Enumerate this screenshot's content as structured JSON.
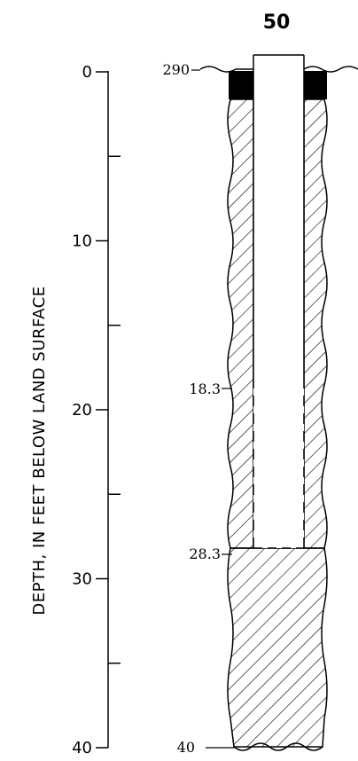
{
  "well": {
    "id": "50"
  },
  "axis": {
    "title": "DEPTH, IN FEET BELOW LAND SURFACE",
    "min": 0,
    "max": 40,
    "major_ticks": [
      0,
      10,
      20,
      30,
      40
    ],
    "minor_ticks": [
      5,
      15,
      25,
      35
    ],
    "tick_labels": [
      "0",
      "10",
      "20",
      "30",
      "40"
    ]
  },
  "well_log": {
    "land_surface_label": "290",
    "screen_top_label": "18.3",
    "screen_bottom_label": "28.3",
    "bottom_label": "40",
    "screen_top": 18.3,
    "screen_bottom": 28.3,
    "total_depth": 40
  },
  "colors": {
    "ink": "#000000",
    "background": "#ffffff"
  }
}
